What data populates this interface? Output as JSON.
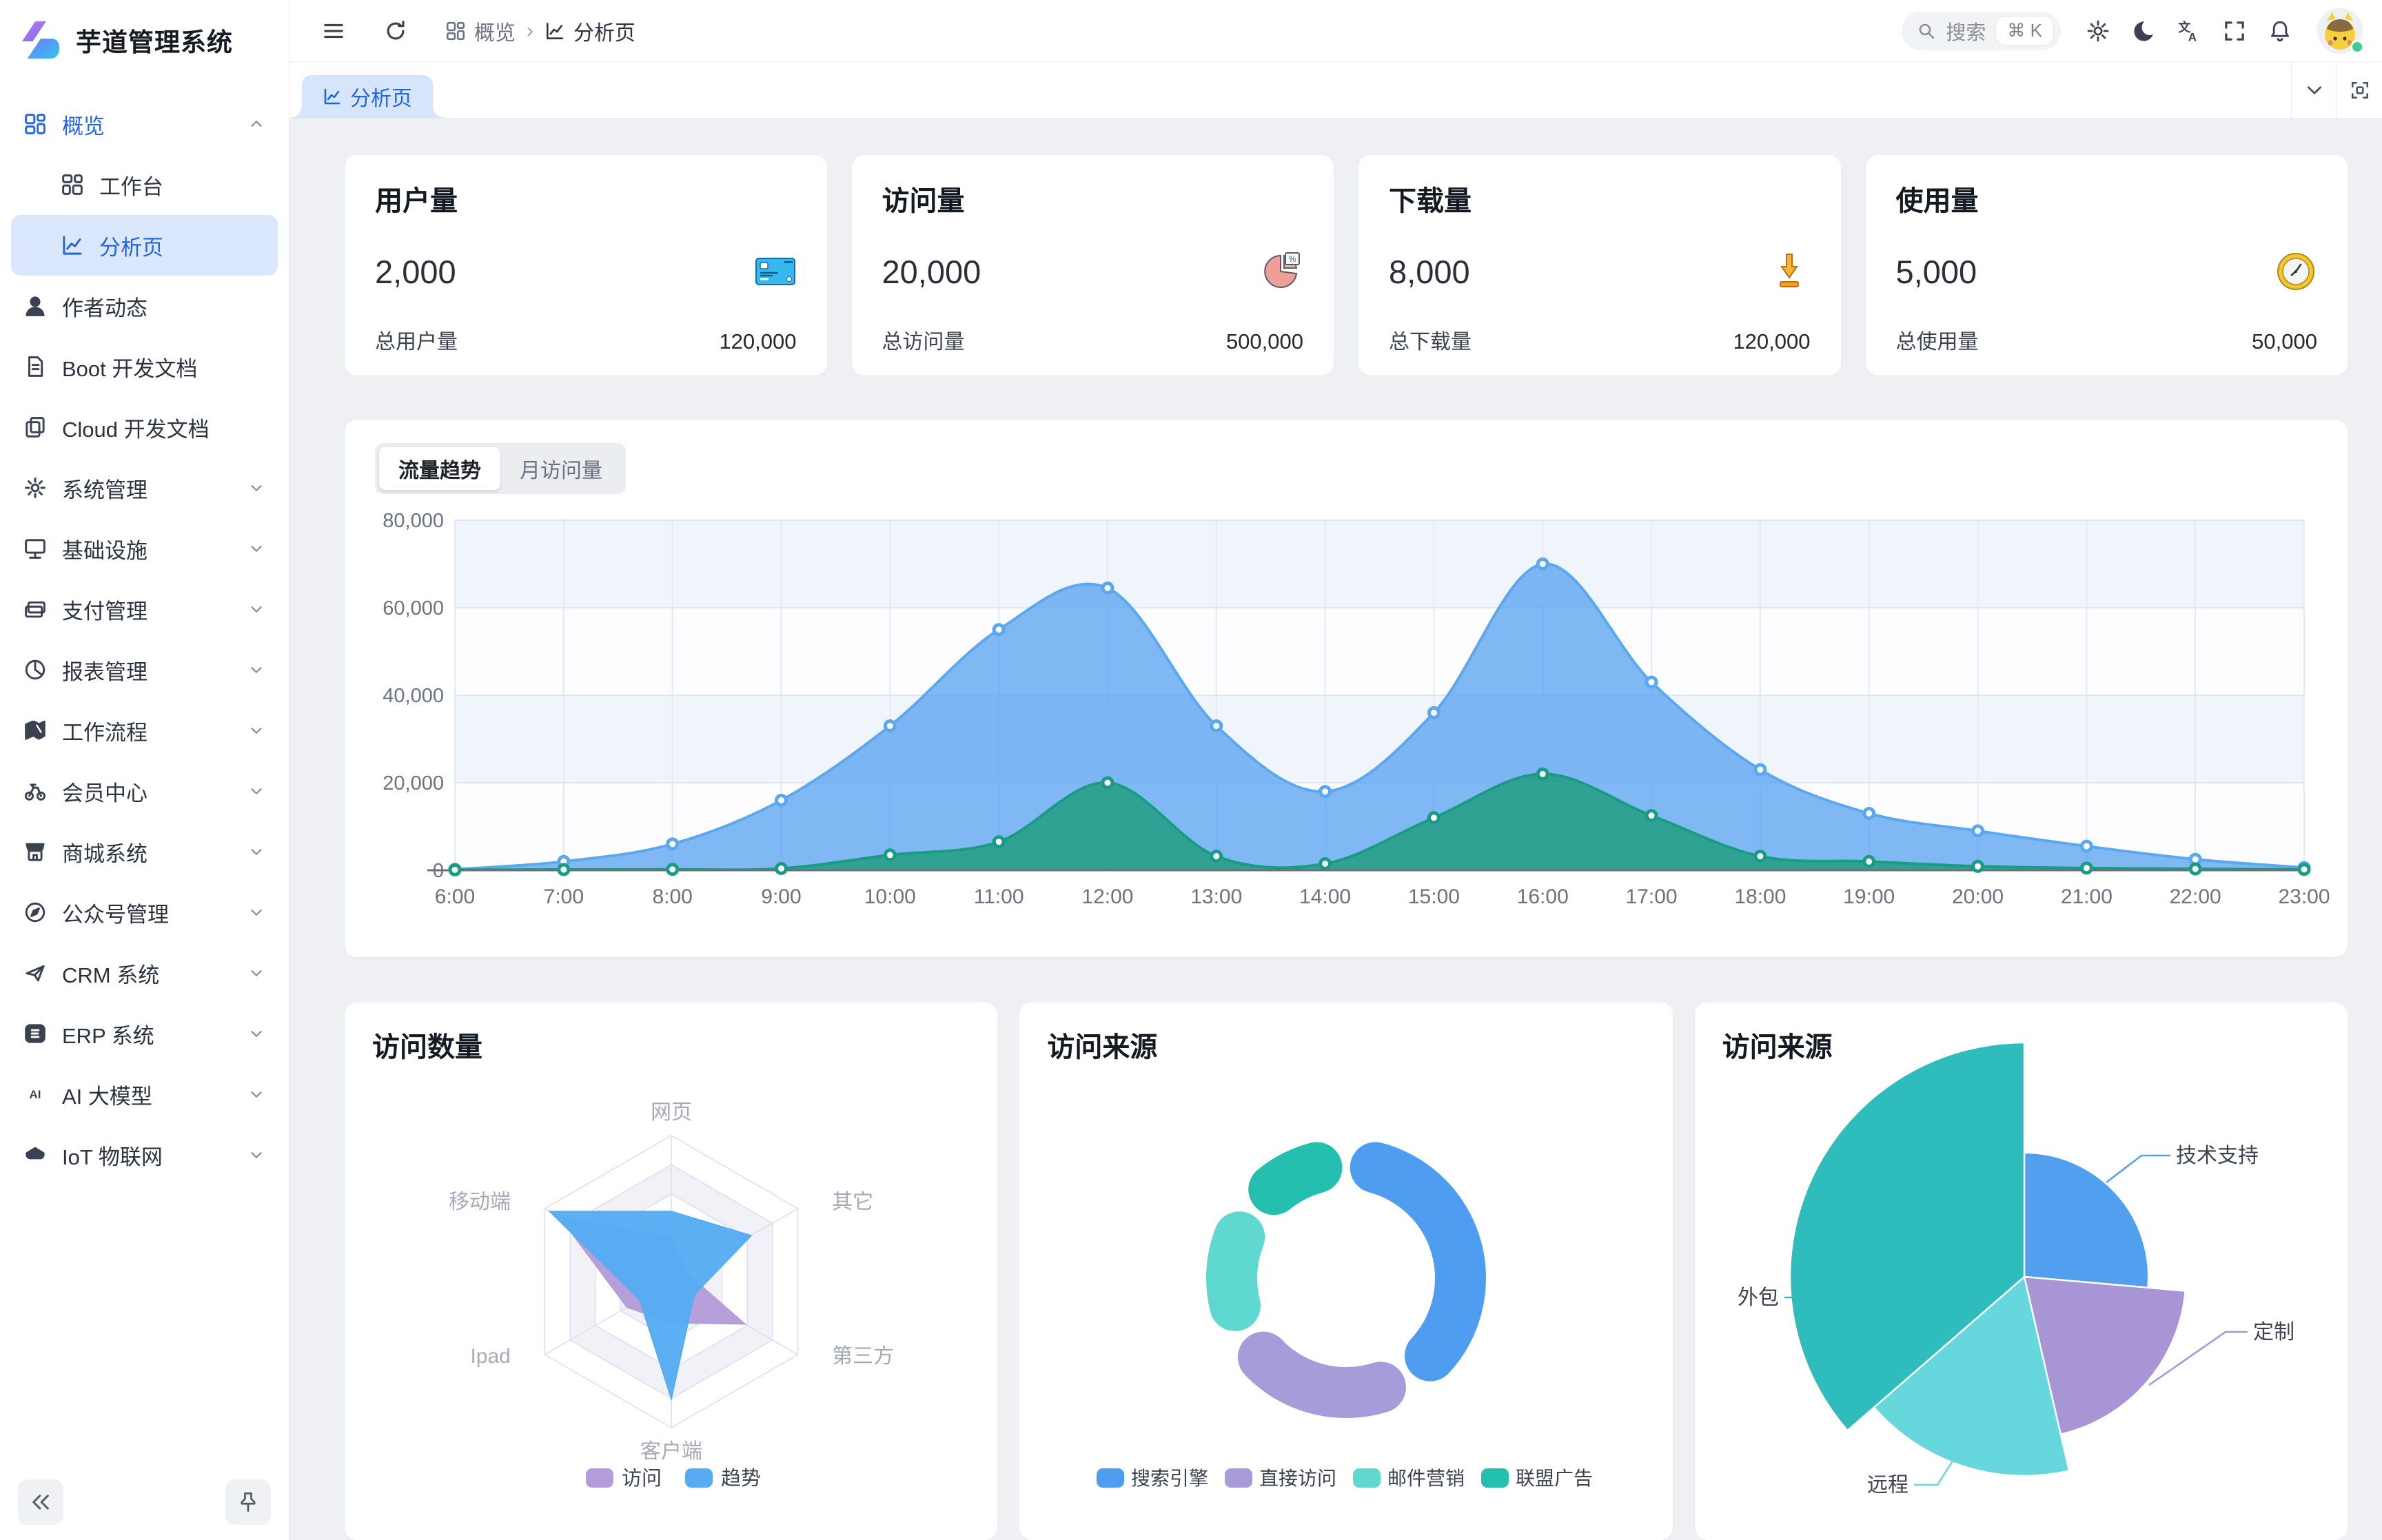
{
  "app": {
    "title": "芋道管理系统"
  },
  "sidebar": {
    "items": [
      {
        "label": "概览",
        "icon": "grid",
        "style": "blue",
        "chevron": "up"
      },
      {
        "label": "工作台",
        "icon": "workbench",
        "style": "child",
        "chevron": ""
      },
      {
        "label": "分析页",
        "icon": "analysis",
        "style": "child-active",
        "chevron": ""
      },
      {
        "label": "作者动态",
        "icon": "user",
        "style": "",
        "chevron": ""
      },
      {
        "label": "Boot 开发文档",
        "icon": "doc",
        "style": "",
        "chevron": ""
      },
      {
        "label": "Cloud 开发文档",
        "icon": "docs",
        "style": "",
        "chevron": ""
      },
      {
        "label": "系统管理",
        "icon": "gear",
        "style": "",
        "chevron": "down"
      },
      {
        "label": "基础设施",
        "icon": "monitor",
        "style": "",
        "chevron": "down"
      },
      {
        "label": "支付管理",
        "icon": "pay",
        "style": "",
        "chevron": "down"
      },
      {
        "label": "报表管理",
        "icon": "pie",
        "style": "",
        "chevron": "down"
      },
      {
        "label": "工作流程",
        "icon": "workflow",
        "style": "",
        "chevron": "down"
      },
      {
        "label": "会员中心",
        "icon": "member",
        "style": "",
        "chevron": "down"
      },
      {
        "label": "商城系统",
        "icon": "mall",
        "style": "",
        "chevron": "down"
      },
      {
        "label": "公众号管理",
        "icon": "compass",
        "style": "",
        "chevron": "down"
      },
      {
        "label": "CRM 系统",
        "icon": "crm",
        "style": "",
        "chevron": "down"
      },
      {
        "label": "ERP 系统",
        "icon": "erp",
        "style": "",
        "chevron": "down"
      },
      {
        "label": "AI 大模型",
        "icon": "ai",
        "style": "",
        "chevron": "down"
      },
      {
        "label": "IoT 物联网",
        "icon": "iot",
        "style": "",
        "chevron": "down"
      }
    ]
  },
  "header": {
    "breadcrumb": [
      {
        "icon": "grid",
        "label": "概览"
      },
      {
        "icon": "analysis",
        "label": "分析页"
      }
    ],
    "search": {
      "placeholder": "搜索",
      "shortcut": "⌘ K"
    }
  },
  "tabbar": {
    "active_tab": {
      "icon": "analysis",
      "label": "分析页"
    }
  },
  "stat_cards": [
    {
      "title": "用户量",
      "value": "2,000",
      "icon": "bankcard",
      "footer_label": "总用户量",
      "footer_value": "120,000"
    },
    {
      "title": "访问量",
      "value": "20,000",
      "icon": "piechart",
      "footer_label": "总访问量",
      "footer_value": "500,000"
    },
    {
      "title": "下载量",
      "value": "8,000",
      "icon": "download",
      "footer_label": "总下载量",
      "footer_value": "120,000"
    },
    {
      "title": "使用量",
      "value": "5,000",
      "icon": "clock",
      "footer_label": "总使用量",
      "footer_value": "50,000"
    }
  ],
  "trend": {
    "tabs": [
      {
        "label": "流量趋势"
      },
      {
        "label": "月访问量"
      }
    ]
  },
  "panels": {
    "radar_title": "访问数量",
    "donut_title": "访问来源",
    "rose_title": "访问来源"
  },
  "chart_data": [
    {
      "id": "traffic-trend",
      "type": "area",
      "grid": true,
      "legend_position": "none",
      "x": [
        "6:00",
        "7:00",
        "8:00",
        "9:00",
        "10:00",
        "11:00",
        "12:00",
        "13:00",
        "14:00",
        "15:00",
        "16:00",
        "17:00",
        "18:00",
        "19:00",
        "20:00",
        "21:00",
        "22:00",
        "23:00"
      ],
      "ylim": [
        0,
        80000
      ],
      "ytick_labels": [
        "0",
        "20,000",
        "40,000",
        "60,000",
        "80,000"
      ],
      "series": [
        {
          "name": "series-blue",
          "color": "#5ba8ee",
          "fill": "rgba(79,157,240,0.72)",
          "values": [
            200,
            2000,
            6000,
            16000,
            33000,
            55000,
            64500,
            33000,
            18000,
            36000,
            70000,
            43000,
            23000,
            13000,
            9000,
            5500,
            2500,
            600
          ]
        },
        {
          "name": "series-green",
          "color": "#199b84",
          "fill": "rgba(42,160,141,0.95)",
          "values": [
            100,
            150,
            200,
            400,
            3500,
            6500,
            20000,
            3200,
            1500,
            12000,
            22000,
            12500,
            3200,
            2000,
            900,
            500,
            300,
            200
          ]
        }
      ]
    },
    {
      "id": "visit-count-radar",
      "type": "radar",
      "max": 100,
      "legend_position": "bottom",
      "indicators": [
        "网页",
        "其它",
        "第三方",
        "客户端",
        "Ipad",
        "移动端"
      ],
      "series": [
        {
          "name": "访问",
          "color": "#b49bd9",
          "values": [
            30,
            12,
            58,
            28,
            35,
            88
          ]
        },
        {
          "name": "趋势",
          "color": "#55acf2",
          "values": [
            48,
            63,
            18,
            80,
            25,
            96
          ]
        }
      ]
    },
    {
      "id": "visit-source-donut",
      "type": "pie",
      "variant": "donut",
      "legend_position": "bottom",
      "items": [
        {
          "label": "搜索引擎",
          "color": "#4f9df0",
          "value": 41
        },
        {
          "label": "直接访问",
          "color": "#a89bd9",
          "value": 26
        },
        {
          "label": "邮件营销",
          "color": "#5fd8d0",
          "value": 18
        },
        {
          "label": "联盟广告",
          "color": "#25bfb0",
          "value": 15
        }
      ]
    },
    {
      "id": "visit-source-rose",
      "type": "pie",
      "variant": "rose",
      "items": [
        {
          "label": "技术支持",
          "color": "#519fee",
          "angle_deg": 95,
          "radius_ratio": 0.53
        },
        {
          "label": "定制",
          "color": "#a795d6",
          "angle_deg": 72,
          "radius_ratio": 0.69
        },
        {
          "label": "远程",
          "color": "#66d8dd",
          "angle_deg": 62,
          "radius_ratio": 0.85
        },
        {
          "label": "外包",
          "color": "#2ebdbc",
          "angle_deg": 131,
          "radius_ratio": 1.0
        }
      ]
    }
  ]
}
